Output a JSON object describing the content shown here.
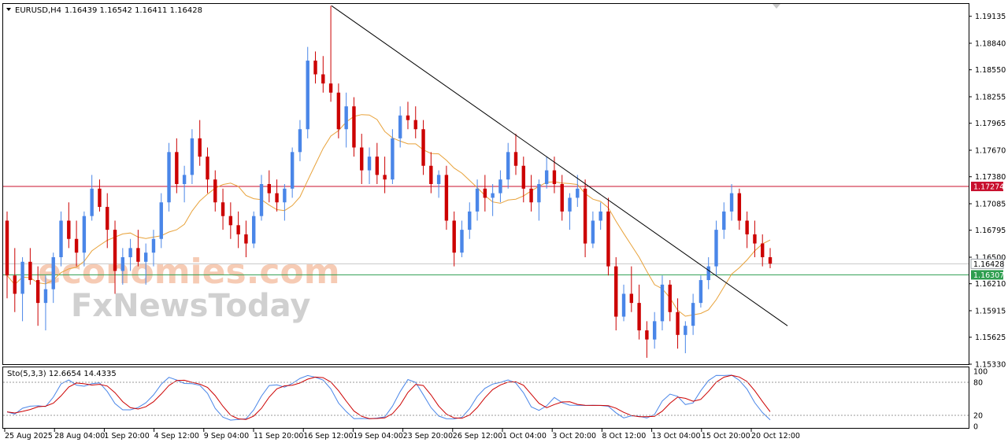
{
  "header": {
    "symbol": "EURUSD,H4",
    "ohlc": "1.16439 1.16542 1.16411 1.16428"
  },
  "watermark": {
    "line1": "economies.com",
    "line2": "FxNewsToday"
  },
  "chart_data": {
    "type": "candlestick",
    "price_axis": {
      "min": 1.1533,
      "max": 1.1927,
      "ticks": [
        "1.19135",
        "1.18840",
        "1.18550",
        "1.18255",
        "1.17965",
        "1.17670",
        "1.17380",
        "1.17085",
        "1.16795",
        "1.16500",
        "1.16210",
        "1.15915",
        "1.15625",
        "1.15330"
      ]
    },
    "time_axis_labels": [
      "25 Aug 2025",
      "28 Aug 04:00",
      "1 Sep 20:00",
      "4 Sep 12:00",
      "9 Sep 04:00",
      "11 Sep 20:00",
      "16 Sep 12:00",
      "19 Sep 04:00",
      "23 Sep 20:00",
      "26 Sep 12:00",
      "1 Oct 04:00",
      "3 Oct 20:00",
      "8 Oct 12:00",
      "13 Oct 04:00",
      "15 Oct 20:00",
      "20 Oct 12:00"
    ],
    "horizontal_levels": [
      {
        "value": "1.17274",
        "color": "#c8102e"
      },
      {
        "value": "1.16307",
        "color": "#2e9e4f"
      }
    ],
    "current_price": {
      "value": "1.16428",
      "color": "#9aa0a6"
    },
    "trendline": {
      "from_label": "16 Sep 12:00",
      "from_price": 1.1925,
      "to_label": "20 Oct 12:00+",
      "to_price": 1.1575
    },
    "moving_average_color": "#e8a23a",
    "candle_colors": {
      "up": "#4a86e8",
      "down": "#cc0000"
    },
    "candles": [
      [
        1.169,
        1.17,
        1.1605,
        1.163
      ],
      [
        1.163,
        1.166,
        1.159,
        1.161
      ],
      [
        1.161,
        1.165,
        1.158,
        1.1645
      ],
      [
        1.1645,
        1.166,
        1.162,
        1.1625
      ],
      [
        1.1625,
        1.164,
        1.1575,
        1.16
      ],
      [
        1.16,
        1.163,
        1.157,
        1.1615
      ],
      [
        1.1615,
        1.1655,
        1.16,
        1.165
      ],
      [
        1.165,
        1.17,
        1.164,
        1.169
      ],
      [
        1.169,
        1.171,
        1.166,
        1.167
      ],
      [
        1.167,
        1.169,
        1.164,
        1.1655
      ],
      [
        1.1655,
        1.17,
        1.164,
        1.1695
      ],
      [
        1.1695,
        1.174,
        1.169,
        1.1725
      ],
      [
        1.1725,
        1.1735,
        1.17,
        1.1705
      ],
      [
        1.1705,
        1.172,
        1.166,
        1.168
      ],
      [
        1.168,
        1.169,
        1.161,
        1.1635
      ],
      [
        1.1635,
        1.166,
        1.162,
        1.165
      ],
      [
        1.165,
        1.167,
        1.1635,
        1.166
      ],
      [
        1.166,
        1.168,
        1.164,
        1.1645
      ],
      [
        1.1645,
        1.1665,
        1.162,
        1.1655
      ],
      [
        1.1655,
        1.168,
        1.164,
        1.167
      ],
      [
        1.167,
        1.172,
        1.166,
        1.171
      ],
      [
        1.171,
        1.1775,
        1.17,
        1.1765
      ],
      [
        1.1765,
        1.178,
        1.172,
        1.173
      ],
      [
        1.173,
        1.175,
        1.171,
        1.174
      ],
      [
        1.174,
        1.179,
        1.173,
        1.178
      ],
      [
        1.178,
        1.18,
        1.175,
        1.176
      ],
      [
        1.176,
        1.177,
        1.172,
        1.1735
      ],
      [
        1.1735,
        1.1745,
        1.17,
        1.171
      ],
      [
        1.171,
        1.1725,
        1.168,
        1.1695
      ],
      [
        1.1695,
        1.171,
        1.167,
        1.1685
      ],
      [
        1.1685,
        1.17,
        1.166,
        1.1675
      ],
      [
        1.1675,
        1.169,
        1.165,
        1.1665
      ],
      [
        1.1665,
        1.17,
        1.166,
        1.1695
      ],
      [
        1.1695,
        1.174,
        1.169,
        1.173
      ],
      [
        1.173,
        1.1745,
        1.171,
        1.172
      ],
      [
        1.172,
        1.1735,
        1.17,
        1.171
      ],
      [
        1.171,
        1.173,
        1.169,
        1.1725
      ],
      [
        1.1725,
        1.177,
        1.1715,
        1.1765
      ],
      [
        1.1765,
        1.18,
        1.1755,
        1.179
      ],
      [
        1.179,
        1.188,
        1.178,
        1.1865
      ],
      [
        1.1865,
        1.1875,
        1.184,
        1.185
      ],
      [
        1.185,
        1.187,
        1.183,
        1.184
      ],
      [
        1.184,
        1.1925,
        1.182,
        1.183
      ],
      [
        1.183,
        1.184,
        1.178,
        1.179
      ],
      [
        1.179,
        1.183,
        1.177,
        1.1815
      ],
      [
        1.1815,
        1.1825,
        1.176,
        1.177
      ],
      [
        1.177,
        1.1785,
        1.173,
        1.1745
      ],
      [
        1.1745,
        1.177,
        1.173,
        1.176
      ],
      [
        1.176,
        1.1775,
        1.173,
        1.174
      ],
      [
        1.174,
        1.176,
        1.172,
        1.1735
      ],
      [
        1.1735,
        1.179,
        1.173,
        1.178
      ],
      [
        1.178,
        1.1815,
        1.177,
        1.1805
      ],
      [
        1.1805,
        1.182,
        1.179,
        1.18
      ],
      [
        1.18,
        1.1815,
        1.178,
        1.179
      ],
      [
        1.179,
        1.18,
        1.174,
        1.175
      ],
      [
        1.175,
        1.1765,
        1.172,
        1.173
      ],
      [
        1.173,
        1.1745,
        1.1715,
        1.174
      ],
      [
        1.174,
        1.175,
        1.168,
        1.169
      ],
      [
        1.169,
        1.17,
        1.164,
        1.1655
      ],
      [
        1.1655,
        1.169,
        1.165,
        1.168
      ],
      [
        1.168,
        1.171,
        1.167,
        1.17
      ],
      [
        1.17,
        1.1735,
        1.169,
        1.1725
      ],
      [
        1.1725,
        1.174,
        1.17,
        1.1715
      ],
      [
        1.1715,
        1.173,
        1.1695,
        1.172
      ],
      [
        1.172,
        1.1745,
        1.171,
        1.1735
      ],
      [
        1.1735,
        1.1775,
        1.1725,
        1.1765
      ],
      [
        1.1765,
        1.1785,
        1.174,
        1.175
      ],
      [
        1.175,
        1.176,
        1.171,
        1.1725
      ],
      [
        1.1725,
        1.174,
        1.17,
        1.171
      ],
      [
        1.171,
        1.1735,
        1.169,
        1.173
      ],
      [
        1.173,
        1.176,
        1.1725,
        1.1745
      ],
      [
        1.1745,
        1.176,
        1.172,
        1.173
      ],
      [
        1.173,
        1.174,
        1.169,
        1.17
      ],
      [
        1.17,
        1.172,
        1.168,
        1.1715
      ],
      [
        1.1715,
        1.174,
        1.1705,
        1.1725
      ],
      [
        1.1725,
        1.1735,
        1.165,
        1.1665
      ],
      [
        1.1665,
        1.17,
        1.166,
        1.169
      ],
      [
        1.169,
        1.171,
        1.168,
        1.17
      ],
      [
        1.17,
        1.1715,
        1.163,
        1.164
      ],
      [
        1.164,
        1.165,
        1.157,
        1.1585
      ],
      [
        1.1585,
        1.162,
        1.158,
        1.161
      ],
      [
        1.161,
        1.164,
        1.159,
        1.16
      ],
      [
        1.16,
        1.162,
        1.156,
        1.157
      ],
      [
        1.157,
        1.158,
        1.154,
        1.156
      ],
      [
        1.156,
        1.159,
        1.155,
        1.158
      ],
      [
        1.158,
        1.163,
        1.157,
        1.162
      ],
      [
        1.162,
        1.1625,
        1.158,
        1.159
      ],
      [
        1.159,
        1.1605,
        1.155,
        1.1565
      ],
      [
        1.1565,
        1.158,
        1.1545,
        1.1575
      ],
      [
        1.1575,
        1.161,
        1.1565,
        1.16
      ],
      [
        1.16,
        1.163,
        1.1595,
        1.1625
      ],
      [
        1.1625,
        1.165,
        1.1615,
        1.164
      ],
      [
        1.164,
        1.169,
        1.163,
        1.168
      ],
      [
        1.168,
        1.171,
        1.167,
        1.17
      ],
      [
        1.17,
        1.173,
        1.169,
        1.172
      ],
      [
        1.172,
        1.1725,
        1.168,
        1.169
      ],
      [
        1.169,
        1.17,
        1.166,
        1.1675
      ],
      [
        1.1675,
        1.169,
        1.165,
        1.1665
      ],
      [
        1.1665,
        1.1675,
        1.164,
        1.165
      ],
      [
        1.165,
        1.166,
        1.1638,
        1.1643
      ]
    ]
  },
  "stochastic": {
    "label": "Sto(5,3,3) 12.6654 14.4335",
    "axis_labels": [
      "100",
      "80",
      "20",
      "0"
    ],
    "main_color": "#4a86e8",
    "signal_color": "#cc0000"
  }
}
